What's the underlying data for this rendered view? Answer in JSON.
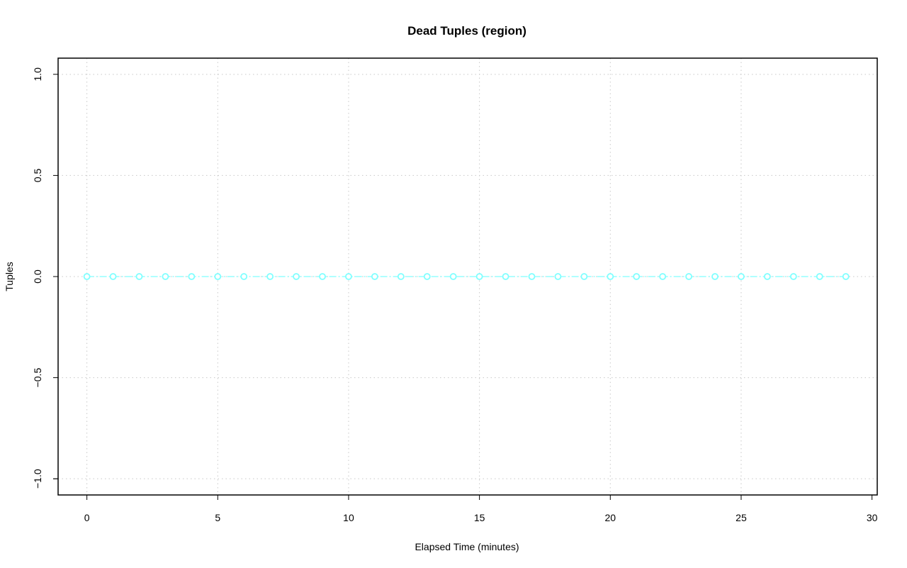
{
  "chart_data": {
    "type": "line",
    "title": "Dead Tuples (region)",
    "xlabel": "Elapsed Time (minutes)",
    "ylabel": "Tuples",
    "xlim": [
      -1.1,
      30.2
    ],
    "ylim": [
      -1.08,
      1.08
    ],
    "xticks": [
      "0",
      "5",
      "10",
      "15",
      "20",
      "25",
      "30"
    ],
    "yticks": [
      "−1.0",
      "−0.5",
      "0.0",
      "0.5",
      "1.0"
    ],
    "grid": true,
    "series": [
      {
        "color": "#7fffff",
        "marker": "circle",
        "line_style": "dashed",
        "x": [
          0,
          1,
          2,
          3,
          4,
          5,
          6,
          7,
          8,
          9,
          10,
          11,
          12,
          13,
          14,
          15,
          16,
          17,
          18,
          19,
          20,
          21,
          22,
          23,
          24,
          25,
          26,
          27,
          28,
          29
        ],
        "y": [
          0,
          0,
          0,
          0,
          0,
          0,
          0,
          0,
          0,
          0,
          0,
          0,
          0,
          0,
          0,
          0,
          0,
          0,
          0,
          0,
          0,
          0,
          0,
          0,
          0,
          0,
          0,
          0,
          0,
          0
        ]
      }
    ]
  }
}
